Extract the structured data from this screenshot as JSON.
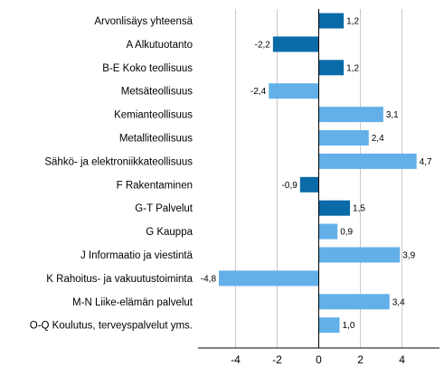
{
  "chart_data": {
    "type": "bar",
    "orientation": "horizontal",
    "title": "",
    "xlabel": "",
    "ylabel": "",
    "xlim": [
      -5.8,
      5.8
    ],
    "xticks": [
      -4,
      -2,
      0,
      2,
      4
    ],
    "grid": "vertical",
    "legend": "none",
    "colors": {
      "dark": "#0b6aa8",
      "light": "#63b0e8",
      "grid": "#c8c8c8",
      "axis": "#000000"
    },
    "categories": [
      "Arvonlisäys yhteensä",
      "A Alkutuotanto",
      "B-E Koko teollisuus",
      "Metsäteollisuus",
      "Kemianteollisuus",
      "Metalliteollisuus",
      "Sähkö- ja elektroniikkateollisuus",
      "F Rakentaminen",
      "G-T Palvelut",
      "G Kauppa",
      "J Informaatio ja viestintä",
      "K Rahoitus- ja vakuutustoiminta",
      "M-N Liike-elämän palvelut",
      "O-Q Koulutus, terveyspalvelut yms."
    ],
    "values": [
      1.2,
      -2.2,
      1.2,
      -2.4,
      3.1,
      2.4,
      4.7,
      -0.9,
      1.5,
      0.9,
      3.9,
      -4.8,
      3.4,
      1.0
    ],
    "value_labels": [
      "1,2",
      "-2,2",
      "1,2",
      "-2,4",
      "3,1",
      "2,4",
      "4,7",
      "-0,9",
      "1,5",
      "0,9",
      "3,9",
      "-4,8",
      "3,4",
      "1,0"
    ],
    "shade": [
      "dark",
      "dark",
      "dark",
      "light",
      "light",
      "light",
      "light",
      "dark",
      "dark",
      "light",
      "light",
      "light",
      "light",
      "light"
    ]
  }
}
